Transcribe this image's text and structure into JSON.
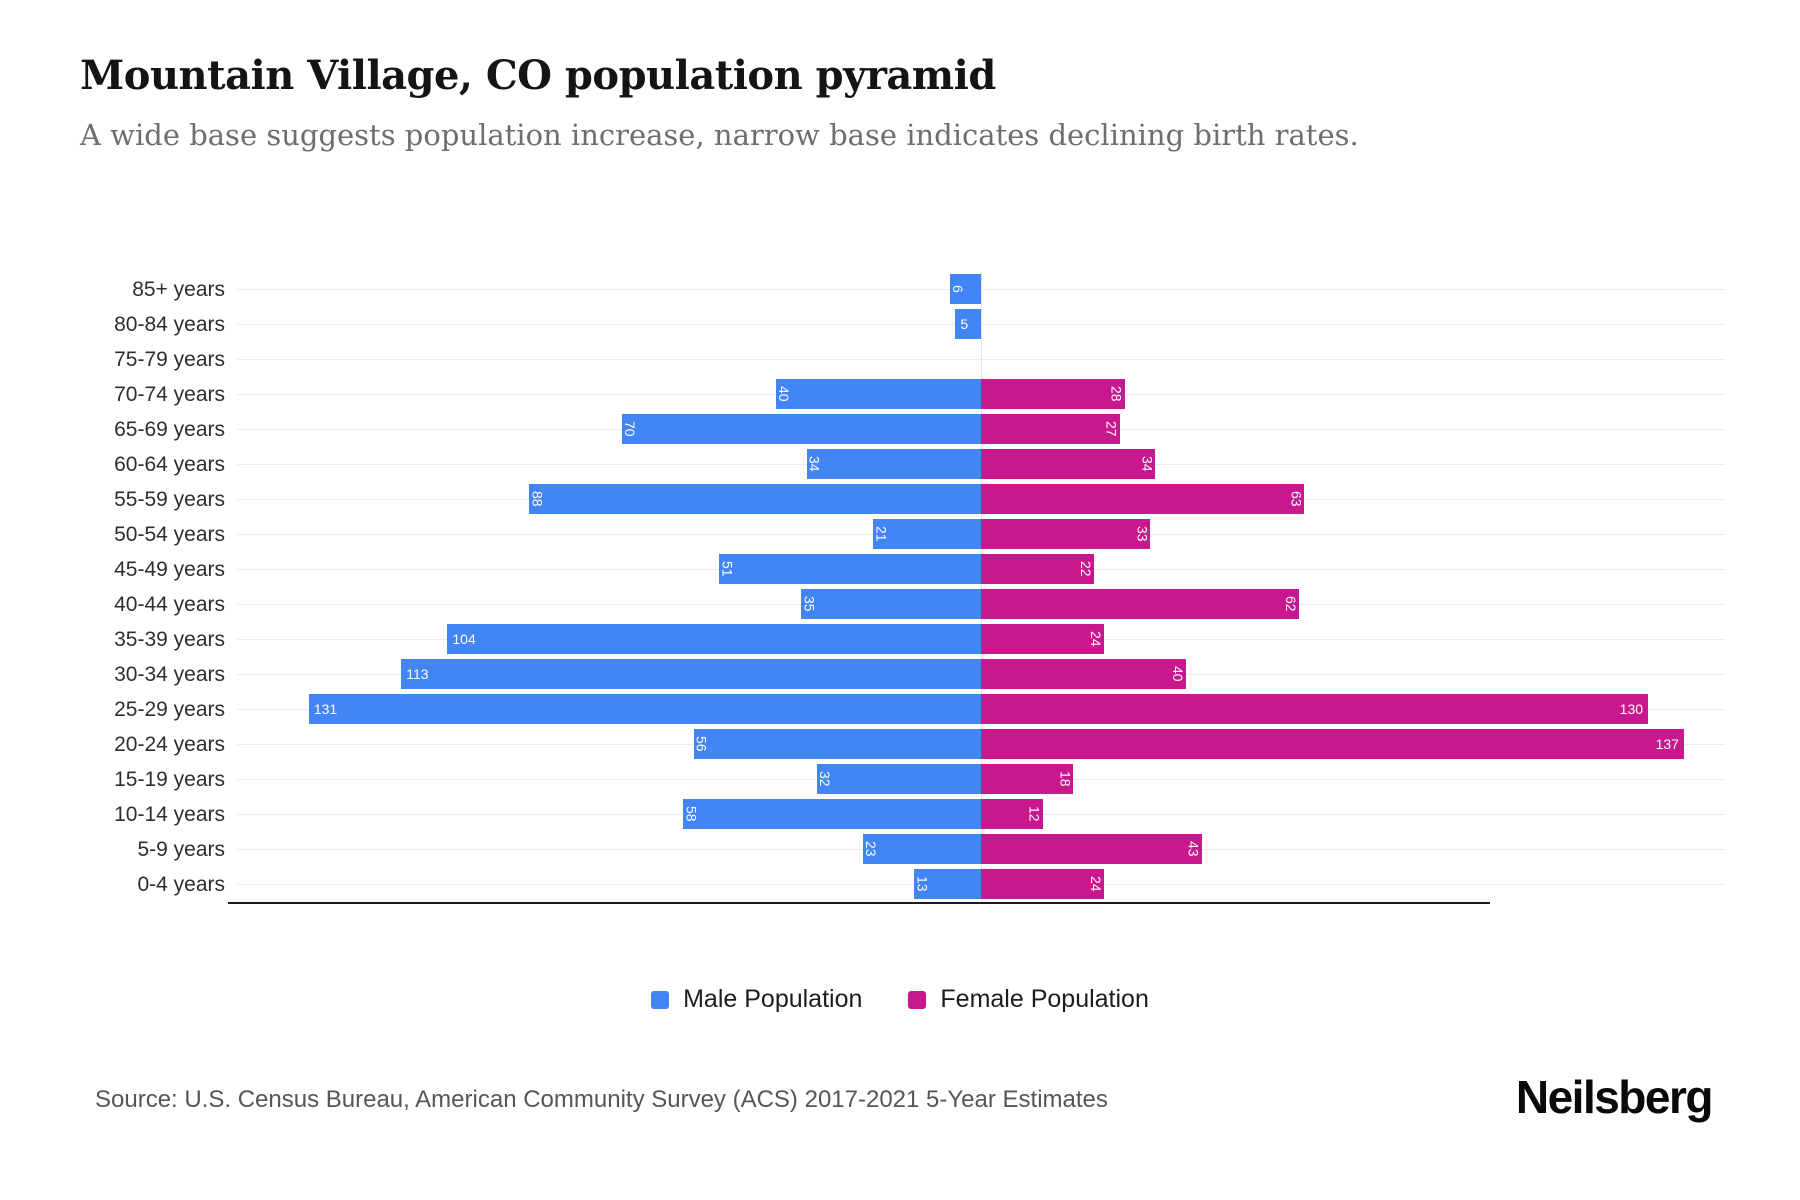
{
  "header": {
    "title": "Mountain Village, CO population pyramid",
    "subtitle": "A wide base suggests population increase, narrow base indicates declining birth rates."
  },
  "legend": {
    "male_label": "Male Population",
    "female_label": "Female Population"
  },
  "footer": {
    "source": "Source: U.S. Census Bureau, American Community Survey (ACS) 2017-2021 5-Year Estimates",
    "brand": "Neilsberg"
  },
  "colors": {
    "male": "#4285F4",
    "female": "#C9188E",
    "axis": "#1c1c1c",
    "gridline": "#ededed"
  },
  "chart_data": {
    "type": "bar",
    "subtype": "population-pyramid",
    "orientation": "horizontal",
    "title": "Mountain Village, CO population pyramid",
    "categories": [
      "85+ years",
      "80-84 years",
      "75-79 years",
      "70-74 years",
      "65-69 years",
      "60-64 years",
      "55-59 years",
      "50-54 years",
      "45-49 years",
      "40-44 years",
      "35-39 years",
      "30-34 years",
      "25-29 years",
      "20-24 years",
      "15-19 years",
      "10-14 years",
      "5-9 years",
      "0-4 years"
    ],
    "series": [
      {
        "name": "Male Population",
        "side": "left",
        "color": "#4285F4",
        "values": [
          6,
          5,
          0,
          40,
          70,
          34,
          88,
          21,
          51,
          35,
          104,
          113,
          131,
          56,
          32,
          58,
          23,
          13
        ]
      },
      {
        "name": "Female Population",
        "side": "right",
        "color": "#C9188E",
        "values": [
          0,
          0,
          0,
          28,
          27,
          34,
          63,
          33,
          22,
          62,
          24,
          40,
          130,
          137,
          18,
          12,
          43,
          24
        ]
      }
    ],
    "value_axis_max_per_side": 145,
    "grid": true,
    "legend_position": "bottom",
    "bar_labels": "inside-far-end, white, rotated 90deg when 2-digit"
  }
}
